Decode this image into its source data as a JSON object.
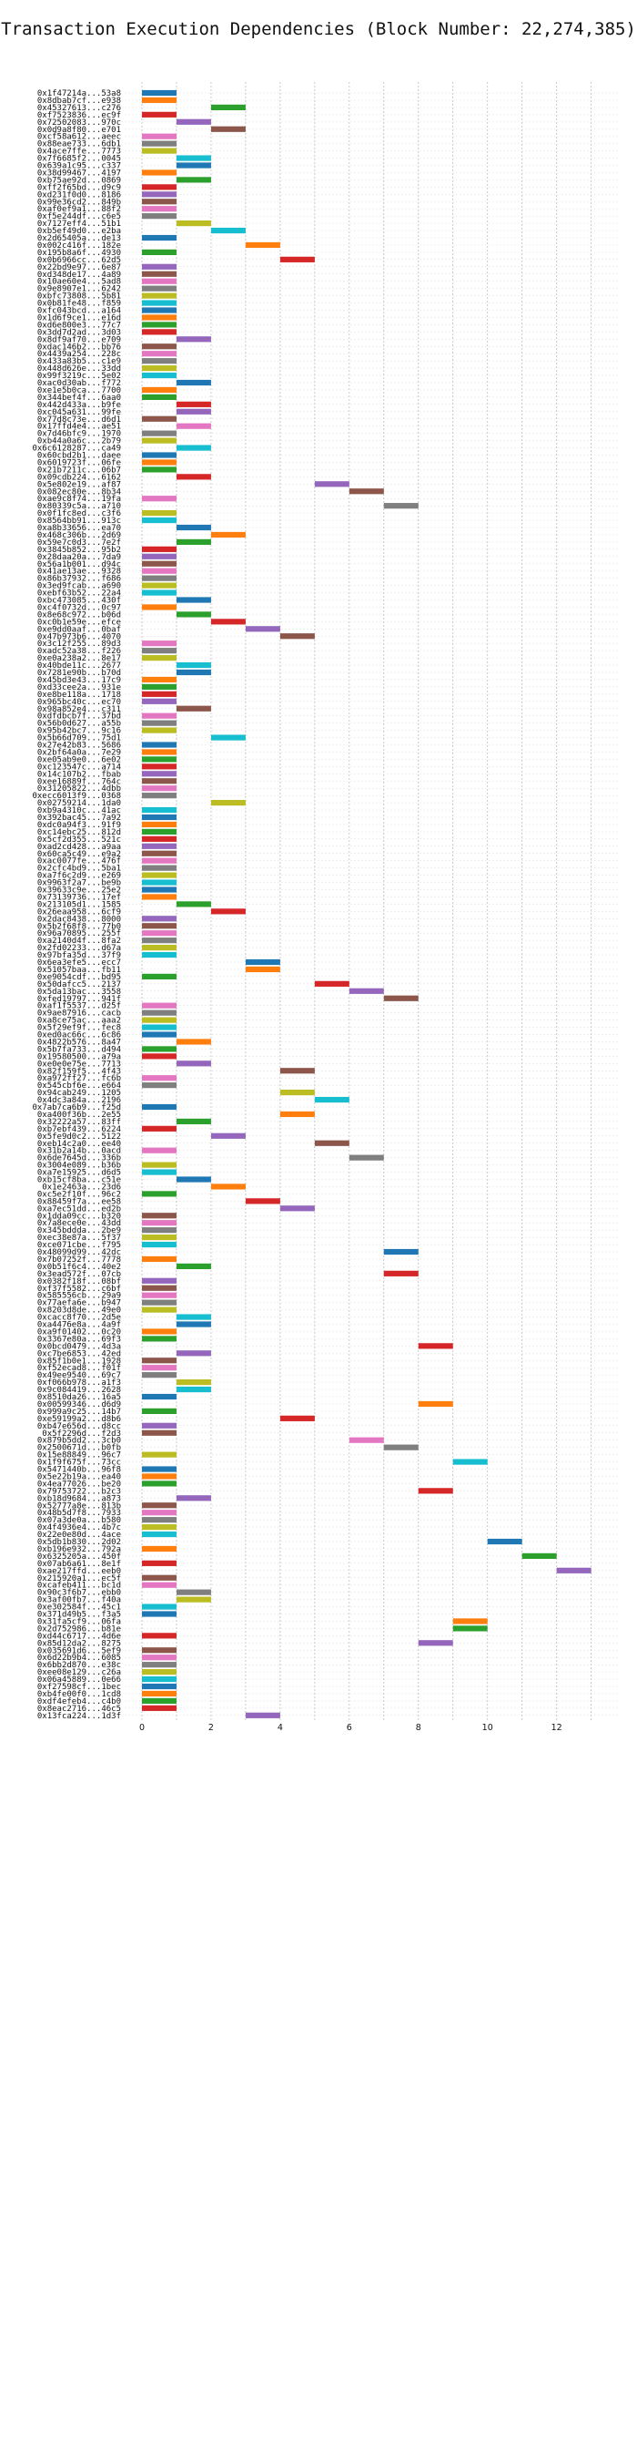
{
  "chart_data": {
    "type": "bar",
    "orientation": "horizontal-gantt",
    "title": "Transaction Execution Dependencies (Block Number: 22,274,385)",
    "xlim": [
      -0.5,
      13.8
    ],
    "xticks": [
      0,
      2,
      4,
      6,
      8,
      10,
      12
    ],
    "grid": true,
    "bar_duration": 1,
    "palette": [
      "#1f77b4",
      "#ff7f0e",
      "#2ca02c",
      "#d62728",
      "#9467bd",
      "#8c564b",
      "#e377c2",
      "#7f7f7f",
      "#bcbd22",
      "#17becf"
    ],
    "transactions": [
      [
        "0x1f47214a...53a8",
        0
      ],
      [
        "0x8dbab7cf...e938",
        0
      ],
      [
        "0x45327613...c276",
        2
      ],
      [
        "0xf7523836...ec9f",
        0
      ],
      [
        "0x72502083...970c",
        1
      ],
      [
        "0x0d9a8f80...e701",
        2
      ],
      [
        "0xcf58a612...aeec",
        0
      ],
      [
        "0x88eae733...6db1",
        0
      ],
      [
        "0x4ace7ffe...7773",
        0
      ],
      [
        "0x7f6685f2...0045",
        1
      ],
      [
        "0x639a1c95...c337",
        1
      ],
      [
        "0x38d99467...4197",
        0
      ],
      [
        "0xb75ae92d...0869",
        1
      ],
      [
        "0xff2f65bd...d9c9",
        0
      ],
      [
        "0xd231f0d0...8186",
        0
      ],
      [
        "0x99e36cd2...849b",
        0
      ],
      [
        "0xaf0ef9a1...88f2",
        0
      ],
      [
        "0xf5e244df...c6e5",
        0
      ],
      [
        "0x7127eff4...51b1",
        1
      ],
      [
        "0xb5ef49d0...e2ba",
        2
      ],
      [
        "0x2d65405a...de13",
        0
      ],
      [
        "0x002c416f...182e",
        3
      ],
      [
        "0x195b8a6f...4930",
        0
      ],
      [
        "0x0b6966cc...62d5",
        4
      ],
      [
        "0x22bd9e97...6e87",
        0
      ],
      [
        "0xd348de17...4a89",
        0
      ],
      [
        "0x10ae60e4...5ad8",
        0
      ],
      [
        "0x9e8907e1...6242",
        0
      ],
      [
        "0xbfc73808...5b81",
        0
      ],
      [
        "0x0b81fe48...f859",
        0
      ],
      [
        "0xfc043bcd...a164",
        0
      ],
      [
        "0x1d6f9ce1...e16d",
        0
      ],
      [
        "0xd6e800e3...77c7",
        0
      ],
      [
        "0x3dd7d2ad...3d03",
        0
      ],
      [
        "0x8df9af70...e709",
        1
      ],
      [
        "0xdac146b2...bb76",
        0
      ],
      [
        "0x4439a254...228c",
        0
      ],
      [
        "0x433a83b5...c1e9",
        0
      ],
      [
        "0x448d626e...33dd",
        0
      ],
      [
        "0x99f3219c...5e02",
        0
      ],
      [
        "0xac0d30ab...f772",
        1
      ],
      [
        "0xe1e5b0ca...7700",
        0
      ],
      [
        "0x344bef4f...6aa0",
        0
      ],
      [
        "0x442d433a...b9fe",
        1
      ],
      [
        "0xc045a631...99fe",
        1
      ],
      [
        "0x77d8c73e...d6d1",
        0
      ],
      [
        "0x17ffd4e4...ae51",
        1
      ],
      [
        "0x7d46bfc9...1970",
        0
      ],
      [
        "0xb44a0a6c...2b79",
        0
      ],
      [
        "0x6c6128287...ca49",
        1
      ],
      [
        "0x60cbd2b1...daee",
        0
      ],
      [
        "0x6019723f...06fe",
        0
      ],
      [
        "0x21b7211c...06b7",
        0
      ],
      [
        "0x09cdb224...6162",
        1
      ],
      [
        "0x5e802e19...af87",
        5
      ],
      [
        "0x082ec80e...8b34",
        6
      ],
      [
        "0xae9c8f74...19fa",
        0
      ],
      [
        "0x80339c5a...a710",
        7
      ],
      [
        "0x0f1fc8ed...c3f6",
        0
      ],
      [
        "0x8564bb91...913c",
        0
      ],
      [
        "0xa8b33656...ea70",
        1
      ],
      [
        "0x468c306b...2d69",
        2
      ],
      [
        "0x59e7c0d3...7e2f",
        1
      ],
      [
        "0x3845b852...95b2",
        0
      ],
      [
        "0x28daa20a...7da9",
        0
      ],
      [
        "0x56a1b001...d94c",
        0
      ],
      [
        "0x41ae13ae...9328",
        0
      ],
      [
        "0x86b37932...f686",
        0
      ],
      [
        "0x3ed9fcab...a690",
        0
      ],
      [
        "0xebf63b52...22a4",
        0
      ],
      [
        "0xbc473085...430f",
        1
      ],
      [
        "0xc4f0732d...0c97",
        0
      ],
      [
        "0x8e68c972...b06d",
        1
      ],
      [
        "0xc0b1e59e...efce",
        2
      ],
      [
        "0xe9dd0aaf...0baf",
        3
      ],
      [
        "0x47b973b6...4070",
        4
      ],
      [
        "0x3c12f255...89d3",
        0
      ],
      [
        "0xadc52a38...f226",
        0
      ],
      [
        "0xe0a238a2...8e17",
        0
      ],
      [
        "0x40bde11c...2677",
        1
      ],
      [
        "0x7281e90b...b70d",
        1
      ],
      [
        "0x45bd3e43...17c9",
        0
      ],
      [
        "0xd33cee2a...931e",
        0
      ],
      [
        "0xe8be118a...1718",
        0
      ],
      [
        "0x965bc40c...ec70",
        0
      ],
      [
        "0x98a852e4...c311",
        1
      ],
      [
        "0xdfdbcb7f...37bd",
        0
      ],
      [
        "0x56b0d627...a55b",
        0
      ],
      [
        "0x95b42bc7...9c16",
        0
      ],
      [
        "0x5b66d709...75d1",
        2
      ],
      [
        "0x27e42b83...5686",
        0
      ],
      [
        "0x2bf64a0a...7e29",
        0
      ],
      [
        "0xe05ab9e0...6e02",
        0
      ],
      [
        "0xc123547c...a714",
        0
      ],
      [
        "0x14c107b2...fbab",
        0
      ],
      [
        "0xee16889f...764c",
        0
      ],
      [
        "0x31205822...4dbb",
        0
      ],
      [
        "0xecc6013f9...0368",
        0
      ],
      [
        "0x02759214...1da0",
        2
      ],
      [
        "0xb9a4310c...41ac",
        0
      ],
      [
        "0x392bac45...7a92",
        0
      ],
      [
        "0xdc0a94f3...91f9",
        0
      ],
      [
        "0xc14ebc25...812d",
        0
      ],
      [
        "0x5cf2d355...521c",
        0
      ],
      [
        "0xad2cd428...a9aa",
        0
      ],
      [
        "0x60ca5c49...e9a2",
        0
      ],
      [
        "0xac0077fe...476f",
        0
      ],
      [
        "0x2cfc4bd9...5ba1",
        0
      ],
      [
        "0xa7f6c2d9...e269",
        0
      ],
      [
        "0x9963f2a7...be9b",
        0
      ],
      [
        "0x39633c9e...25e2",
        0
      ],
      [
        "0x73139736...17ef",
        0
      ],
      [
        "0x213105d1...1585",
        1
      ],
      [
        "0x26eaa958...6cf9",
        2
      ],
      [
        "0x2dac8438...8000",
        0
      ],
      [
        "0x5b2f68f8...77b0",
        0
      ],
      [
        "0x96a70895...255f",
        0
      ],
      [
        "0xa2140d4f...8fa2",
        0
      ],
      [
        "0x2fd02233...d67a",
        0
      ],
      [
        "0x97bfa35d...37f9",
        0
      ],
      [
        "0x6ea3efe5...ecc7",
        3
      ],
      [
        "0x51057baa...fb11",
        3
      ],
      [
        "0xe9054cdf...bd95",
        0
      ],
      [
        "0x50dafcc5...2137",
        5
      ],
      [
        "0x5da13bac...3558",
        6
      ],
      [
        "0xfed19797...941f",
        7
      ],
      [
        "0xaf1f5537...d25f",
        0
      ],
      [
        "0x9ae87916...cacb",
        0
      ],
      [
        "0xa8ce75ac...aaa2",
        0
      ],
      [
        "0x5f29ef9f...fec8",
        0
      ],
      [
        "0xed0ac66c...6c86",
        0
      ],
      [
        "0x4822b576...8a47",
        1
      ],
      [
        "0x5b7fa733...d494",
        0
      ],
      [
        "0x19580500...a79a",
        0
      ],
      [
        "0xe0e0e75e...7713",
        1
      ],
      [
        "0x82f159f5...4f43",
        4
      ],
      [
        "0xa972ff27...fc6b",
        0
      ],
      [
        "0x545cbf6e...e664",
        0
      ],
      [
        "0x94cab249...1205",
        4
      ],
      [
        "0x4dc3a84a...2196",
        5
      ],
      [
        "0x7ab7ca6b9...f25d",
        0
      ],
      [
        "0xa400f36b...2e55",
        4
      ],
      [
        "0x32222a57...83ff",
        1
      ],
      [
        "0xb7ebf439...6224",
        0
      ],
      [
        "0x5fe9d0c2...5122",
        2
      ],
      [
        "0xeb14c2a0...ee40",
        5
      ],
      [
        "0x31b2a14b...0acd",
        0
      ],
      [
        "0x6de7645d...336b",
        6
      ],
      [
        "0x3004e089...b36b",
        0
      ],
      [
        "0xa7e15925...d6d5",
        0
      ],
      [
        "0xb15cf8ba...c51e",
        1
      ],
      [
        "0x1e2463a...23d6",
        2
      ],
      [
        "0xc5e2f10f...96c2",
        0
      ],
      [
        "0x88459f7a...ee58",
        3
      ],
      [
        "0xa7ec51dd...ed2b",
        4
      ],
      [
        "0x1dda09cc...b320",
        0
      ],
      [
        "0x7a8ece0e...43dd",
        0
      ],
      [
        "0x345bddda...2be9",
        0
      ],
      [
        "0xec38e87a...5f37",
        0
      ],
      [
        "0xce071cbe...f795",
        0
      ],
      [
        "0x48099d99...42dc",
        7
      ],
      [
        "0x7b07252f...7778",
        0
      ],
      [
        "0x0b51f6c4...40e2",
        1
      ],
      [
        "0x3ead572f...07cb",
        7
      ],
      [
        "0x0382f18f...08bf",
        0
      ],
      [
        "0xf37f5582...c6bf",
        0
      ],
      [
        "0x585556cb...29a9",
        0
      ],
      [
        "0x77aefa6e...b947",
        0
      ],
      [
        "0x8203d8de...49e0",
        0
      ],
      [
        "0xcacc8f70...2d5e",
        1
      ],
      [
        "0xa4476e8a...4a9f",
        1
      ],
      [
        "0xa9f01402...0c20",
        0
      ],
      [
        "0x3367e80a...69f3",
        0
      ],
      [
        "0x0bcd0479...4d3a",
        8
      ],
      [
        "0xc7be6853...42ed",
        1
      ],
      [
        "0x85f1b0e1...1928",
        0
      ],
      [
        "0xf52ecad8...f01f",
        0
      ],
      [
        "0x49ee9540...69c7",
        0
      ],
      [
        "0xf066b978...a1f3",
        1
      ],
      [
        "0x9c084419...2628",
        1
      ],
      [
        "0x8510da26...16a5",
        0
      ],
      [
        "0x00599346...d6d9",
        8
      ],
      [
        "0x999a9c25...14b7",
        0
      ],
      [
        "0xe59199a2...d8b6",
        4
      ],
      [
        "0xb47e656d...d8cc",
        0
      ],
      [
        "0x5f2296d...f2d3",
        0
      ],
      [
        "0x879b5dd2...3cb0",
        6
      ],
      [
        "0x2500671d...b0fb",
        7
      ],
      [
        "0x15e88849...96c7",
        0
      ],
      [
        "0x1f9f675f...73cc",
        9
      ],
      [
        "0x5471440b...96f8",
        0
      ],
      [
        "0x5e22b19a...ea40",
        0
      ],
      [
        "0x4ea77026...be20",
        0
      ],
      [
        "0x79753722...b2c3",
        8
      ],
      [
        "0xb18d9684...a873",
        1
      ],
      [
        "0x52777a8e...813b",
        0
      ],
      [
        "0x48b5d7f8...7933",
        0
      ],
      [
        "0x07a3de0a...b580",
        0
      ],
      [
        "0x4f4936e4...4b7c",
        0
      ],
      [
        "0x22e0e80d...4ace",
        0
      ],
      [
        "0x5db1b830...2d02",
        10
      ],
      [
        "0xb196e932...792a",
        0
      ],
      [
        "0x6325205a...450f",
        11
      ],
      [
        "0x07ab6a61...8e1f",
        0
      ],
      [
        "0xae217ffd...eeb0",
        12
      ],
      [
        "0x215920a1...ec5f",
        0
      ],
      [
        "0xcafeb411...bc1d",
        0
      ],
      [
        "0x90c3f6b7...ebb0",
        1
      ],
      [
        "0x3af00fb7...f40a",
        1
      ],
      [
        "0xe302584f...45c1",
        0
      ],
      [
        "0x371d49b5...f3a5",
        0
      ],
      [
        "0x31fa5cf9...06fa",
        9
      ],
      [
        "0x2d752986...b81e",
        9
      ],
      [
        "0xd44c6717...4d6e",
        0
      ],
      [
        "0x85d12da2...8275",
        8
      ],
      [
        "0x035691d6...5ef9",
        0
      ],
      [
        "0x6d22b9b4...6085",
        0
      ],
      [
        "0x6bb2d870...e38c",
        0
      ],
      [
        "0xee08e129...c26a",
        0
      ],
      [
        "0x06a45889...0e66",
        0
      ],
      [
        "0xf27598cf...1bec",
        0
      ],
      [
        "0xb4fe00f0...1cd8",
        0
      ],
      [
        "0xdf4efeb4...c4b0",
        0
      ],
      [
        "0x8eac2716...46c5",
        0
      ],
      [
        "0x13fca224...1d3f",
        3
      ]
    ]
  }
}
